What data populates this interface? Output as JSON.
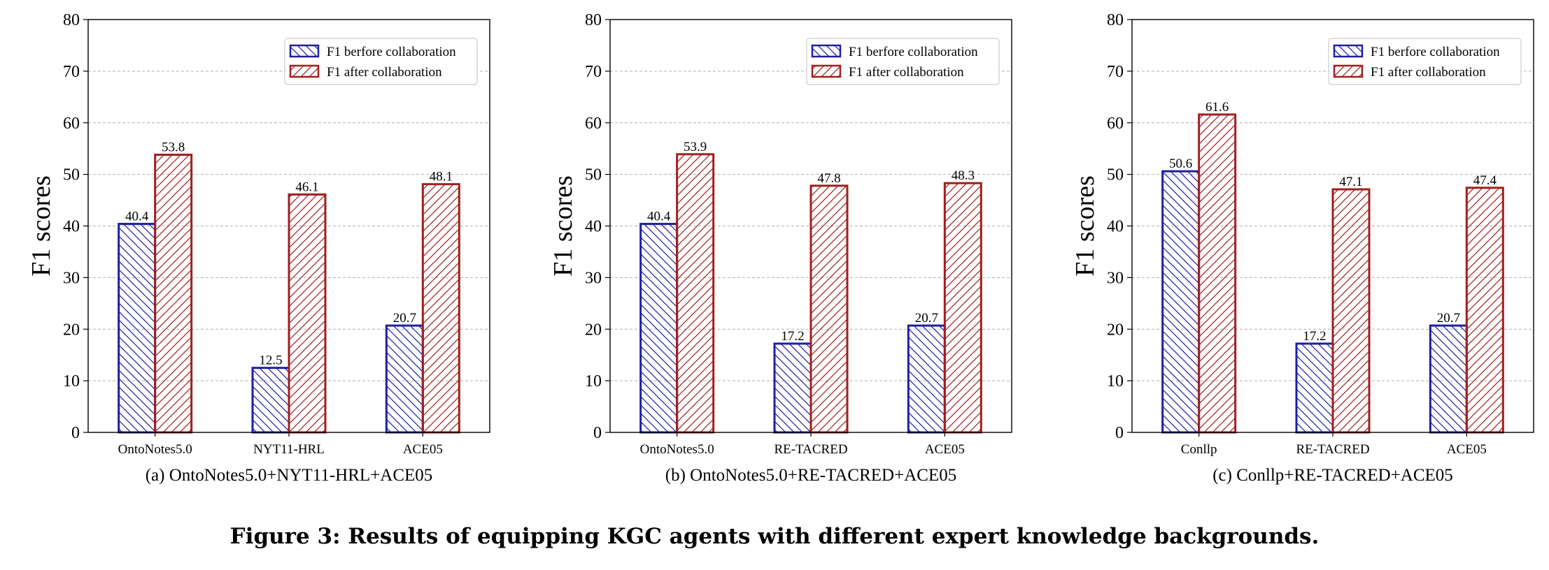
{
  "figure": {
    "caption": "Figure 3: Results of equipping KGC agents with different expert knowledge backgrounds."
  },
  "colors": {
    "before": "#1f1fa0",
    "after": "#a01f1f",
    "grid": "#b0b0b0"
  },
  "chart_data": [
    {
      "type": "bar",
      "subtitle": "(a) OntoNotes5.0+NYT11-HRL+ACE05",
      "ylabel": "F1 scores",
      "xlabel": "",
      "ylim": [
        0,
        80
      ],
      "yticks": [
        0,
        10,
        20,
        30,
        40,
        50,
        60,
        70,
        80
      ],
      "grid": "y-dashed",
      "legend_position": "top-right",
      "categories": [
        "OntoNotes5.0",
        "NYT11-HRL",
        "ACE05"
      ],
      "series": [
        {
          "name": "F1 berfore collaboration",
          "hatch": "backslash",
          "values": [
            40.4,
            12.5,
            20.7
          ],
          "labels": [
            "40.4",
            "12.5",
            "20.7"
          ]
        },
        {
          "name": "F1 after collaboration",
          "hatch": "slash",
          "values": [
            53.8,
            46.1,
            48.1
          ],
          "labels": [
            "53.8",
            "46.1",
            "48.1"
          ]
        }
      ]
    },
    {
      "type": "bar",
      "subtitle": "(b) OntoNotes5.0+RE-TACRED+ACE05",
      "ylabel": "F1 scores",
      "xlabel": "",
      "ylim": [
        0,
        80
      ],
      "yticks": [
        0,
        10,
        20,
        30,
        40,
        50,
        60,
        70,
        80
      ],
      "grid": "y-dashed",
      "legend_position": "top-right",
      "categories": [
        "OntoNotes5.0",
        "RE-TACRED",
        "ACE05"
      ],
      "series": [
        {
          "name": "F1 berfore collaboration",
          "hatch": "backslash",
          "values": [
            40.4,
            17.2,
            20.7
          ],
          "labels": [
            "40.4",
            "17.2",
            "20.7"
          ]
        },
        {
          "name": "F1 after collaboration",
          "hatch": "slash",
          "values": [
            53.9,
            47.8,
            48.3
          ],
          "labels": [
            "53.9",
            "47.8",
            "48.3"
          ]
        }
      ]
    },
    {
      "type": "bar",
      "subtitle": "(c) Conllp+RE-TACRED+ACE05",
      "ylabel": "F1 scores",
      "xlabel": "",
      "ylim": [
        0,
        80
      ],
      "yticks": [
        0,
        10,
        20,
        30,
        40,
        50,
        60,
        70,
        80
      ],
      "grid": "y-dashed",
      "legend_position": "top-right",
      "categories": [
        "Conllp",
        "RE-TACRED",
        "ACE05"
      ],
      "series": [
        {
          "name": "F1 berfore collaboration",
          "hatch": "backslash",
          "values": [
            50.6,
            17.2,
            20.7
          ],
          "labels": [
            "50.6",
            "17.2",
            "20.7"
          ]
        },
        {
          "name": "F1 after collaboration",
          "hatch": "slash",
          "values": [
            61.6,
            47.1,
            47.4
          ],
          "labels": [
            "61.6",
            "47.1",
            "47.4"
          ]
        }
      ]
    }
  ]
}
